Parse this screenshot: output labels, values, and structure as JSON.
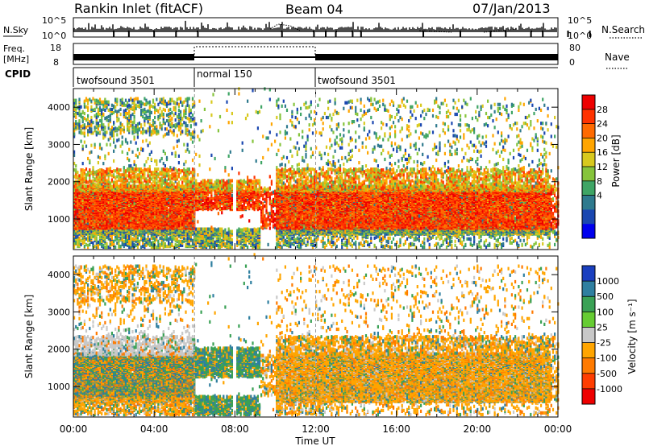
{
  "header": {
    "title": "Rankin Inlet (fitACF)",
    "beam": "Beam 04",
    "date": "07/Jan/2013"
  },
  "chart_data": [
    {
      "name": "nsky-nsearch",
      "type": "line",
      "left_label": "N.Sky",
      "right_label": "N.Search",
      "left_ticks": [
        "10^5",
        "10^0"
      ],
      "right_ticks": [
        "10^5",
        "10^0"
      ],
      "series": [
        {
          "name": "N.Sky",
          "style": "solid"
        },
        {
          "name": "N.Search",
          "style": "dotted"
        }
      ]
    },
    {
      "name": "freq-nave",
      "type": "line",
      "left_label": "Freq.",
      "left_unit": "[MHz]",
      "right_label": "Nave",
      "left_ticks": [
        "18",
        "8"
      ],
      "right_ticks": [
        "80",
        "0"
      ]
    },
    {
      "name": "cpid",
      "type": "table",
      "label": "CPID",
      "segments": [
        {
          "start_hour": 0,
          "end_hour": 6,
          "label": "twofsound 3501"
        },
        {
          "start_hour": 6,
          "end_hour": 12,
          "label": "normal 150"
        },
        {
          "start_hour": 12,
          "end_hour": 24,
          "label": "twofsound 3501"
        }
      ]
    },
    {
      "name": "power",
      "type": "heatmap",
      "ylabel": "Slant Range [km]",
      "xlim_hours": [
        0,
        24
      ],
      "ylim": [
        180,
        4500
      ],
      "yticks": [
        "1000",
        "2000",
        "3000",
        "4000"
      ],
      "colorbar": {
        "label": "Power [dB]",
        "ticks": [
          "4",
          "8",
          "12",
          "16",
          "20",
          "24",
          "28"
        ],
        "colors": [
          "#0000ee",
          "#1a47b0",
          "#2f7a8e",
          "#3fa565",
          "#86c43c",
          "#d8c91e",
          "#ffa500",
          "#ff6a00",
          "#ff3300",
          "#ee0000"
        ]
      }
    },
    {
      "name": "velocity",
      "type": "heatmap",
      "ylabel": "Slant Range [km]",
      "xlabel": "Time UT",
      "xlim_hours": [
        0,
        24
      ],
      "ylim": [
        180,
        4500
      ],
      "yticks": [
        "1000",
        "2000",
        "3000",
        "4000"
      ],
      "xticks": [
        "00:00",
        "04:00",
        "08:00",
        "12:00",
        "16:00",
        "20:00",
        "00:00"
      ],
      "colorbar": {
        "label": "Velocity [m s⁻¹]",
        "ticks": [
          "1000",
          "500",
          "100",
          "25",
          "-25",
          "-100",
          "-500",
          "-1000"
        ],
        "colors": [
          "#1a3fbf",
          "#2f7fa0",
          "#3aa155",
          "#66cc33",
          "#c8c8c8",
          "#ffa500",
          "#ff7a00",
          "#ff3d00",
          "#ee0000"
        ]
      }
    }
  ]
}
